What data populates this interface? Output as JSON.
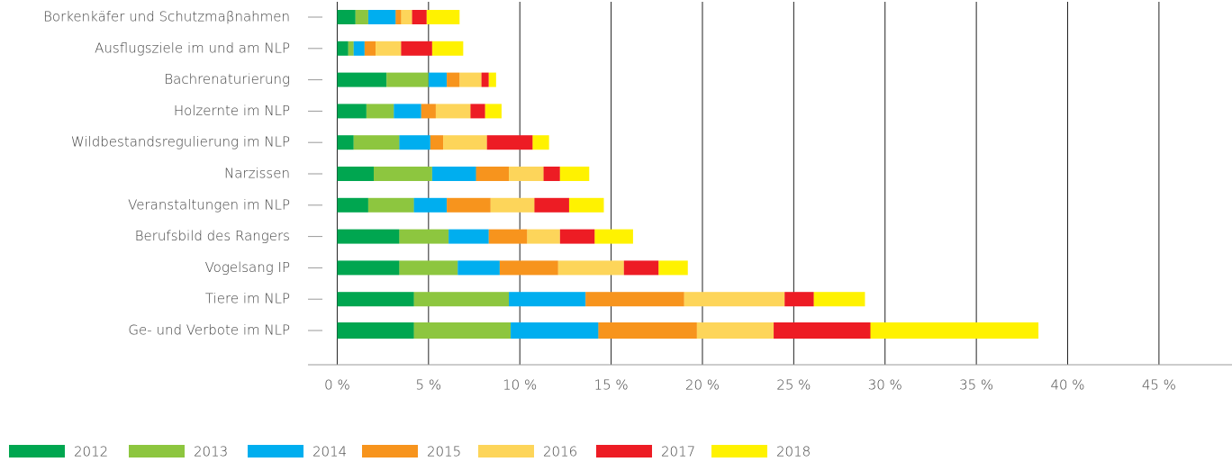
{
  "chart_data": {
    "type": "stacked_barh",
    "categories": [
      "Borkenkäfer und Schutzmaβnahmen",
      "Ausflugsziele im und am NLP",
      "Bachrenaturierung",
      "Holzernte im NLP",
      "Wildbestandsregulierung im NLP",
      "Narzissen",
      "Veranstaltungen im NLP",
      "Berufsbild des Rangers",
      "Vogelsang IP",
      "Tiere im NLP",
      "Ge- und Verbote im NLP"
    ],
    "series": [
      {
        "name": "2012",
        "color": "#00a650",
        "values": [
          1.0,
          0.6,
          2.7,
          1.6,
          0.9,
          2.0,
          1.7,
          3.4,
          3.4,
          4.2,
          4.2
        ]
      },
      {
        "name": "2013",
        "color": "#8dc63f",
        "values": [
          0.7,
          0.3,
          2.3,
          1.5,
          2.5,
          3.2,
          2.5,
          2.7,
          3.2,
          5.2,
          5.3
        ]
      },
      {
        "name": "2014",
        "color": "#00aeef",
        "values": [
          1.5,
          0.6,
          1.0,
          1.5,
          1.7,
          2.4,
          1.8,
          2.2,
          2.3,
          4.2,
          4.8
        ]
      },
      {
        "name": "2015",
        "color": "#f7941d",
        "values": [
          0.3,
          0.6,
          0.7,
          0.8,
          0.7,
          1.8,
          2.4,
          2.1,
          3.2,
          5.4,
          5.4
        ]
      },
      {
        "name": "2016",
        "color": "#fdd55a",
        "values": [
          0.6,
          1.4,
          1.2,
          1.9,
          2.4,
          1.9,
          2.4,
          1.8,
          3.6,
          5.5,
          4.2
        ]
      },
      {
        "name": "2017",
        "color": "#ed1c24",
        "values": [
          0.8,
          1.7,
          0.4,
          0.8,
          2.5,
          0.9,
          1.9,
          1.9,
          1.9,
          1.6,
          5.3
        ]
      },
      {
        "name": "2018",
        "color": "#fff200",
        "values": [
          1.8,
          1.7,
          0.4,
          0.9,
          0.9,
          1.6,
          1.9,
          2.1,
          1.6,
          2.8,
          9.2
        ]
      }
    ],
    "xlim": [
      -1.6,
      49
    ],
    "xticks": [
      {
        "value": 0,
        "label": "0 %"
      },
      {
        "value": 5,
        "label": "5 %"
      },
      {
        "value": 10,
        "label": "10 %"
      },
      {
        "value": 15,
        "label": "15 %"
      },
      {
        "value": 20,
        "label": "20 %"
      },
      {
        "value": 25,
        "label": "25 %"
      },
      {
        "value": 30,
        "label": "30 %"
      },
      {
        "value": 35,
        "label": "35 %"
      },
      {
        "value": 40,
        "label": "40 %"
      },
      {
        "value": 45,
        "label": "45 %"
      }
    ],
    "grid": true,
    "legend": "bottom-left"
  }
}
